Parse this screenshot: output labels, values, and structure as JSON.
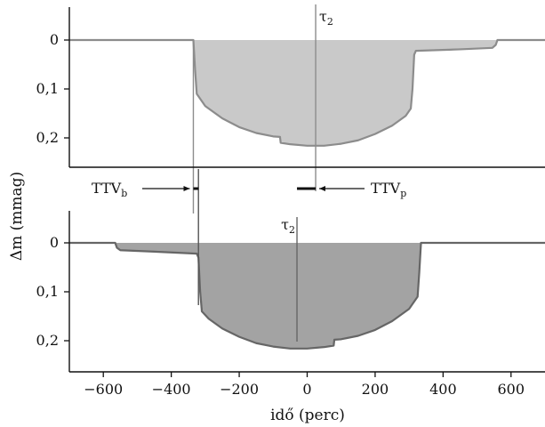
{
  "chart_data": {
    "type": "area",
    "ylabel": "Δm (mmag)",
    "xlabel": "idő (perc)",
    "xlim": [
      -700,
      700
    ],
    "x_ticks": [
      "−600",
      "−400",
      "−200",
      "0",
      "200",
      "400",
      "600"
    ],
    "x_tick_values": [
      -600,
      -400,
      -200,
      0,
      200,
      400,
      600
    ],
    "y_ticks": [
      "0",
      "0,1",
      "0,2"
    ],
    "y_tick_values": [
      0,
      0.1,
      0.2
    ],
    "ylim": [
      -0.065,
      0.285
    ],
    "grid": false,
    "panels": [
      {
        "id": "top",
        "fill_color": "#c9c9c9",
        "line_color": "#8c8c8c",
        "series": [
          {
            "x": -700,
            "y": 0
          },
          {
            "x": -335,
            "y": 0
          },
          {
            "x": -330,
            "y": 0.06
          },
          {
            "x": -325,
            "y": 0.11
          },
          {
            "x": -300,
            "y": 0.135
          },
          {
            "x": -250,
            "y": 0.16
          },
          {
            "x": -200,
            "y": 0.178
          },
          {
            "x": -150,
            "y": 0.19
          },
          {
            "x": -100,
            "y": 0.197
          },
          {
            "x": -80,
            "y": 0.198
          },
          {
            "x": -78,
            "y": 0.21
          },
          {
            "x": -50,
            "y": 0.213
          },
          {
            "x": 0,
            "y": 0.216
          },
          {
            "x": 50,
            "y": 0.216
          },
          {
            "x": 100,
            "y": 0.212
          },
          {
            "x": 150,
            "y": 0.205
          },
          {
            "x": 200,
            "y": 0.192
          },
          {
            "x": 250,
            "y": 0.175
          },
          {
            "x": 290,
            "y": 0.155
          },
          {
            "x": 305,
            "y": 0.14
          },
          {
            "x": 310,
            "y": 0.1
          },
          {
            "x": 315,
            "y": 0.03
          },
          {
            "x": 320,
            "y": 0.022
          },
          {
            "x": 450,
            "y": 0.019
          },
          {
            "x": 545,
            "y": 0.016
          },
          {
            "x": 555,
            "y": 0.01
          },
          {
            "x": 560,
            "y": 0
          },
          {
            "x": 700,
            "y": 0
          }
        ],
        "tau_label": "τ",
        "tau_sub": "2",
        "tau_x": 25
      },
      {
        "id": "bottom",
        "fill_color": "#a3a3a3",
        "line_color": "#666666",
        "series": [
          {
            "x": -700,
            "y": 0
          },
          {
            "x": -565,
            "y": 0
          },
          {
            "x": -560,
            "y": 0.01
          },
          {
            "x": -550,
            "y": 0.015
          },
          {
            "x": -450,
            "y": 0.018
          },
          {
            "x": -325,
            "y": 0.022
          },
          {
            "x": -320,
            "y": 0.03
          },
          {
            "x": -315,
            "y": 0.1
          },
          {
            "x": -310,
            "y": 0.14
          },
          {
            "x": -290,
            "y": 0.155
          },
          {
            "x": -250,
            "y": 0.175
          },
          {
            "x": -200,
            "y": 0.192
          },
          {
            "x": -150,
            "y": 0.205
          },
          {
            "x": -100,
            "y": 0.212
          },
          {
            "x": -50,
            "y": 0.216
          },
          {
            "x": 0,
            "y": 0.216
          },
          {
            "x": 50,
            "y": 0.213
          },
          {
            "x": 78,
            "y": 0.21
          },
          {
            "x": 80,
            "y": 0.198
          },
          {
            "x": 100,
            "y": 0.197
          },
          {
            "x": 150,
            "y": 0.19
          },
          {
            "x": 200,
            "y": 0.178
          },
          {
            "x": 250,
            "y": 0.16
          },
          {
            "x": 300,
            "y": 0.135
          },
          {
            "x": 325,
            "y": 0.11
          },
          {
            "x": 330,
            "y": 0.06
          },
          {
            "x": 335,
            "y": 0
          },
          {
            "x": 700,
            "y": 0
          }
        ],
        "tau_label": "τ",
        "tau_sub": "2",
        "tau_x": -30
      }
    ],
    "connector_lines_x": [
      -335,
      -320
    ],
    "ttv_bars": [
      {
        "name": "TTV_b",
        "label": "TTV",
        "sub": "b",
        "x_from": -335,
        "x_to": -320
      },
      {
        "name": "TTV_p",
        "label": "TTV",
        "sub": "p",
        "x_from": -30,
        "x_to": 25
      }
    ]
  }
}
